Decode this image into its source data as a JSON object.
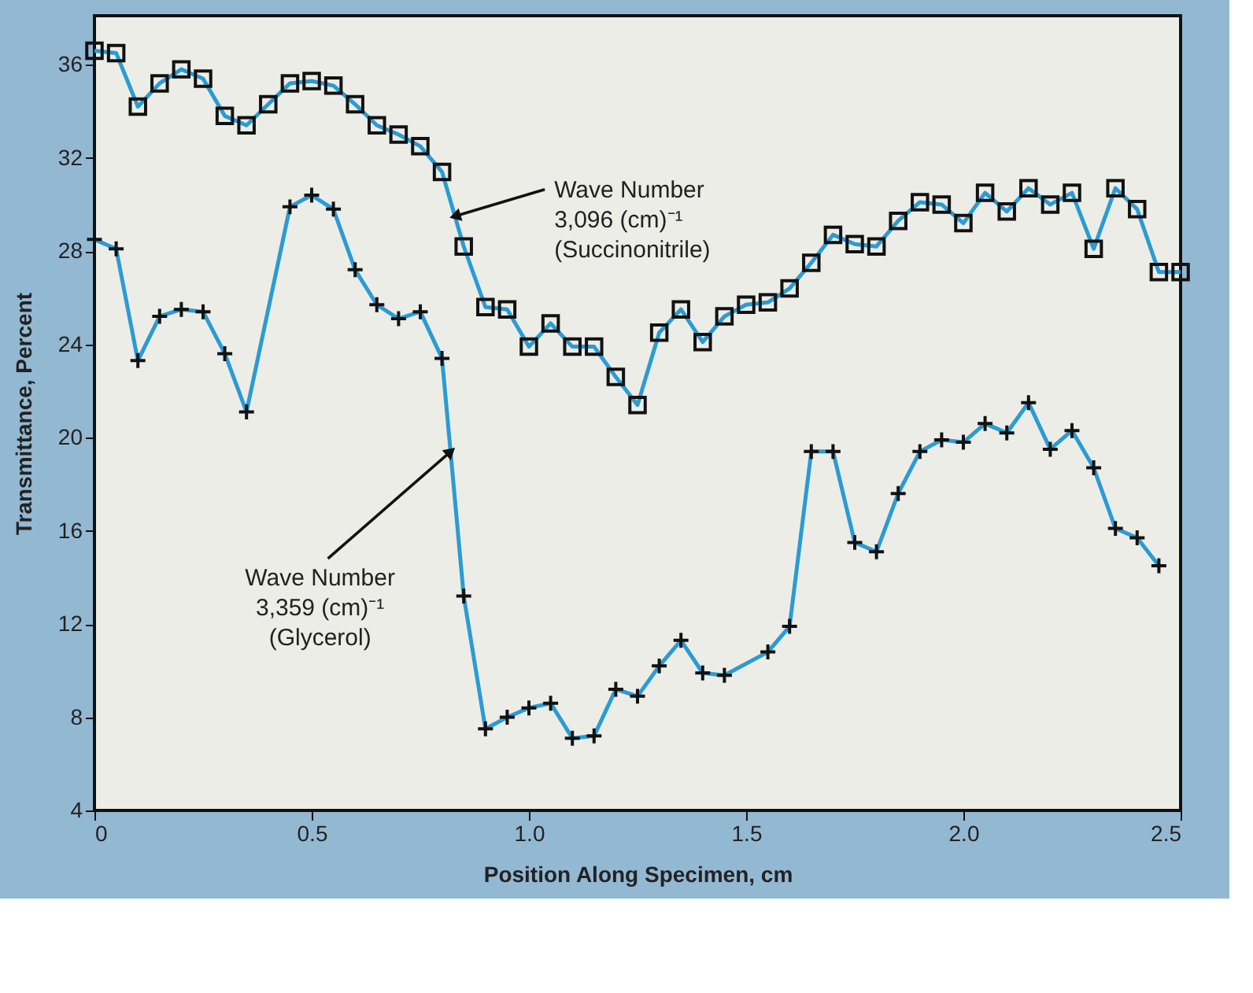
{
  "chart_data": {
    "type": "line",
    "xlabel": "Position Along Specimen, cm",
    "ylabel": "Transmittance, Percent",
    "xlim": [
      0,
      2.5
    ],
    "xticks": [
      0,
      0.5,
      {
        "value": 1,
        "label": "1.0"
      },
      1.5,
      {
        "value": 2,
        "label": "2.0"
      },
      2.5
    ],
    "ylim": [
      4,
      38.1
    ],
    "yticks": [
      4,
      8,
      12,
      16,
      20,
      24,
      28,
      32,
      36
    ],
    "grid": false,
    "series": [
      {
        "color": "#2b9bd3",
        "marker": "square",
        "x": [
          0,
          0.05,
          0.1,
          0.15,
          0.2,
          0.25,
          0.3,
          0.35,
          0.4,
          0.45,
          0.5,
          0.55,
          0.6,
          0.65,
          0.7,
          0.75,
          0.8,
          0.85,
          0.9,
          0.95,
          1.0,
          1.05,
          1.1,
          1.15,
          1.2,
          1.25,
          1.3,
          1.35,
          1.4,
          1.45,
          1.5,
          1.55,
          1.6,
          1.65,
          1.7,
          1.75,
          1.8,
          1.85,
          1.9,
          1.95,
          2.0,
          2.05,
          2.1,
          2.15,
          2.2,
          2.25,
          2.3,
          2.35,
          2.4,
          2.45,
          2.5
        ],
        "values": [
          36.6,
          36.5,
          34.2,
          35.2,
          35.8,
          35.4,
          33.8,
          33.4,
          34.3,
          35.2,
          35.3,
          35.1,
          34.3,
          33.4,
          33.0,
          32.5,
          31.4,
          28.2,
          25.6,
          25.5,
          23.9,
          24.9,
          23.9,
          23.9,
          22.6,
          21.4,
          24.5,
          25.5,
          24.1,
          25.2,
          25.7,
          25.8,
          26.4,
          27.5,
          28.7,
          28.3,
          28.2,
          29.3,
          30.1,
          30.0,
          29.2,
          30.5,
          29.7,
          30.7,
          30.0,
          30.5,
          28.1,
          30.7,
          29.8,
          27.1,
          27.1
        ]
      },
      {
        "color": "#2b9bd3",
        "marker": "cross",
        "x": [
          0,
          0.05,
          0.1,
          0.15,
          0.2,
          0.25,
          0.3,
          0.35,
          0.45,
          0.5,
          0.55,
          0.6,
          0.65,
          0.7,
          0.75,
          0.8,
          0.85,
          0.9,
          0.95,
          1.0,
          1.05,
          1.1,
          1.15,
          1.2,
          1.25,
          1.3,
          1.35,
          1.4,
          1.45,
          1.55,
          1.6,
          1.65,
          1.7,
          1.75,
          1.8,
          1.85,
          1.9,
          1.95,
          2.0,
          2.05,
          2.1,
          2.15,
          2.2,
          2.25,
          2.3,
          2.35,
          2.4,
          2.45
        ],
        "values": [
          28.5,
          28.1,
          23.3,
          25.2,
          25.5,
          25.4,
          23.6,
          21.1,
          29.9,
          30.4,
          29.8,
          27.2,
          25.7,
          25.1,
          25.4,
          23.4,
          13.2,
          7.5,
          8.0,
          8.4,
          8.6,
          7.1,
          7.2,
          9.2,
          8.9,
          10.2,
          11.3,
          9.9,
          9.8,
          10.8,
          11.9,
          19.4,
          19.4,
          15.5,
          15.1,
          17.6,
          19.4,
          19.9,
          19.8,
          20.6,
          20.2,
          21.5,
          19.5,
          20.3,
          18.7,
          16.1,
          15.7,
          14.5
        ]
      }
    ],
    "annotations": [
      {
        "text": "Wave Number\n3,096 (cm)⁻¹\n(Succinonitrile)",
        "x": 0.83,
        "y": 29.5
      },
      {
        "text": "Wave Number\n3,359 (cm)⁻¹\n(Glycerol)",
        "x": 0.82,
        "y": 19.4
      }
    ]
  }
}
